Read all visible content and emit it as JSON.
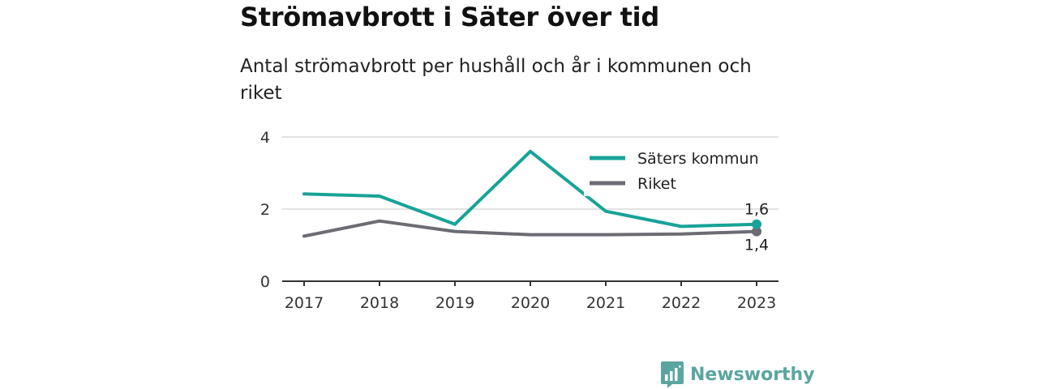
{
  "title": "Strömavbrott i Säter över tid",
  "subtitle": "Antal strömavbrott per hushåll och år i kommunen och riket",
  "brand": {
    "name": "Newsworthy",
    "icon": "bar-chart-bubble-icon",
    "color": "#5ba5a0"
  },
  "chart_data": {
    "type": "line",
    "x": [
      "2017",
      "2018",
      "2019",
      "2020",
      "2021",
      "2022",
      "2023"
    ],
    "ylim": [
      0,
      4
    ],
    "yticks": [
      "0",
      "2",
      "4"
    ],
    "grid": true,
    "legend_position": "top-right",
    "series": [
      {
        "name": "Säters kommun",
        "color": "#17a398",
        "values": [
          2.42,
          2.36,
          1.58,
          3.6,
          1.94,
          1.52,
          1.58
        ],
        "end_label": "1,6"
      },
      {
        "name": "Riket",
        "color": "#6d6b73",
        "values": [
          1.25,
          1.67,
          1.38,
          1.29,
          1.29,
          1.31,
          1.38
        ],
        "end_label": "1,4"
      }
    ]
  }
}
